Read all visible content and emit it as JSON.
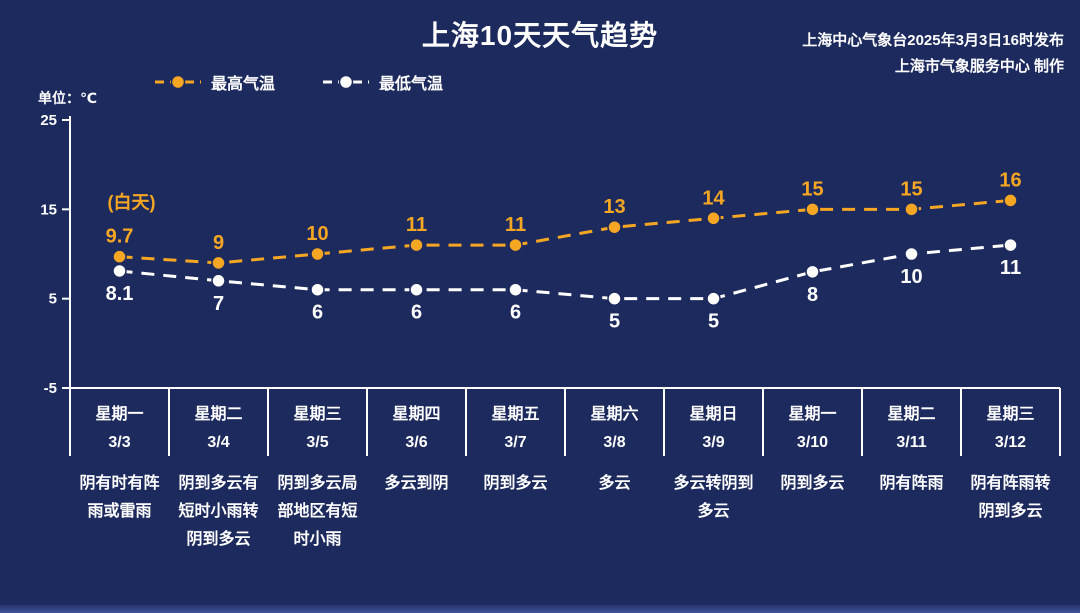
{
  "title": "上海10天天气趋势",
  "source_line1": "上海中心气象台2025年3月3日16时发布",
  "source_line2": "上海市气象服务中心 制作",
  "unit_label": "单位：℃",
  "daytime_label": "(白天)",
  "colors": {
    "background": "#1d2a5e",
    "axis": "#ffffff",
    "high_line": "#f5a623",
    "low_line": "#ffffff"
  },
  "legend": [
    {
      "label": "最高气温",
      "color": "#f5a623"
    },
    {
      "label": "最低气温",
      "color": "#ffffff"
    }
  ],
  "chart_data": {
    "type": "line",
    "title": "上海10天天气趋势",
    "categories": [
      "星期一",
      "星期二",
      "星期三",
      "星期四",
      "星期五",
      "星期六",
      "星期日",
      "星期一",
      "星期二",
      "星期三"
    ],
    "dates": [
      "3/3",
      "3/4",
      "3/5",
      "3/6",
      "3/7",
      "3/8",
      "3/9",
      "3/10",
      "3/11",
      "3/12"
    ],
    "weather": [
      "阴有时有阵雨或雷雨",
      "阴到多云有短时小雨转阴到多云",
      "阴到多云局部地区有短时小雨",
      "多云到阴",
      "阴到多云",
      "多云",
      "多云转阴到多云",
      "阴到多云",
      "阴有阵雨",
      "阴有阵雨转阴到多云"
    ],
    "series": [
      {
        "name": "最高气温",
        "color": "#f5a623",
        "values": [
          9.7,
          9,
          10,
          11,
          11,
          13,
          14,
          15,
          15,
          16
        ]
      },
      {
        "name": "最低气温",
        "color": "#ffffff",
        "values": [
          8.1,
          7,
          6,
          6,
          6,
          5,
          5,
          8,
          10,
          11
        ]
      }
    ],
    "ylabel": "℃",
    "ylim": [
      -5,
      25
    ],
    "yticks": [
      25,
      15,
      5,
      -5
    ],
    "grid": false,
    "legend_position": "top",
    "annotation": "(白天)"
  }
}
